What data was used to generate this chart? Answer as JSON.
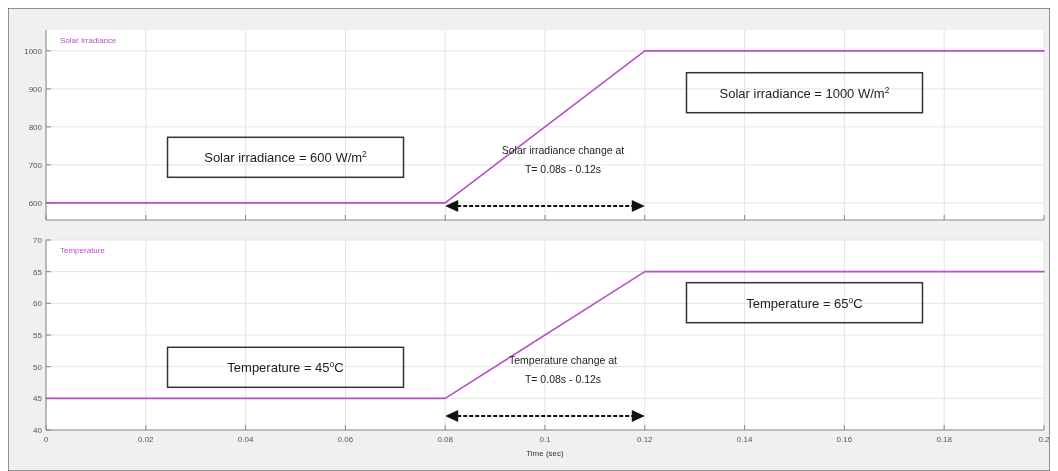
{
  "chart_data": [
    {
      "type": "line",
      "title": "Solar Irradiance",
      "x": [
        0,
        0.08,
        0.12,
        0.2
      ],
      "xlim": [
        0,
        0.2
      ],
      "xticks": [
        0,
        0.02,
        0.04,
        0.06,
        0.08,
        0.1,
        0.12,
        0.14,
        0.16,
        0.18,
        0.2
      ],
      "ylim": [
        555,
        1055
      ],
      "yticks": [
        600,
        700,
        800,
        900,
        1000
      ],
      "tick_labels": "y",
      "grid": true,
      "series": [
        {
          "color": "#b84fc8",
          "values": [
            600,
            600,
            1000,
            1000
          ]
        }
      ],
      "annotations": [
        "Solar irradiance = 600 W/m$^{2}$",
        "Solar irradiance = 1000 W/m$^{2}$",
        "Solar irradiance change at\nT= 0.08s - 0.12s"
      ]
    },
    {
      "type": "line",
      "title": "Temperature",
      "xlabel": "Time (sec)",
      "x": [
        0,
        0.08,
        0.12,
        0.2
      ],
      "xlim": [
        0,
        0.2
      ],
      "xticks": [
        0,
        0.02,
        0.04,
        0.06,
        0.08,
        0.1,
        0.12,
        0.14,
        0.16,
        0.18,
        0.2
      ],
      "ylim": [
        40,
        70
      ],
      "yticks": [
        40,
        45,
        50,
        55,
        60,
        65,
        70
      ],
      "grid": true,
      "series": [
        {
          "color": "#b84fc8",
          "values": [
            45,
            45,
            65,
            65
          ]
        }
      ],
      "annotations": [
        "Temperature = 45$^{o}$C",
        "Temperature = 65$^{o}$C",
        "Temperature change at\nT= 0.08s - 0.12s"
      ]
    }
  ]
}
